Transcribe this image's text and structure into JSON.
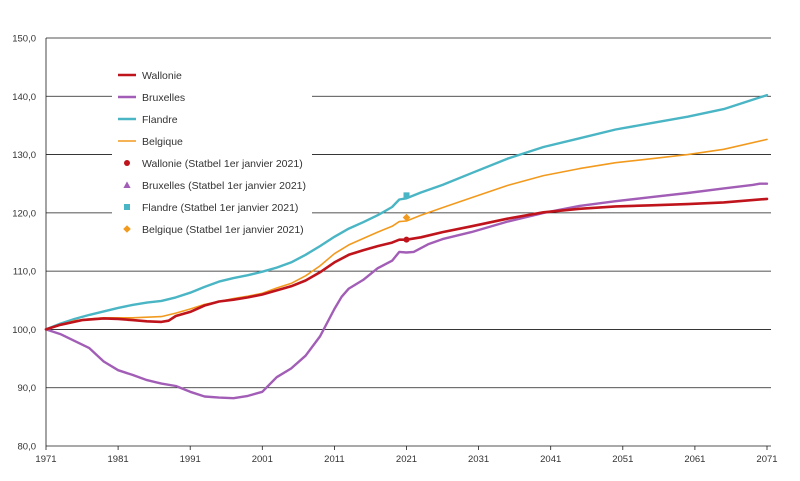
{
  "chart_data": {
    "type": "line",
    "xlim": [
      1971,
      2071
    ],
    "ylim": [
      80,
      150
    ],
    "x_ticks": [
      "1971",
      "1981",
      "1991",
      "2001",
      "2011",
      "2021",
      "2031",
      "2041",
      "2051",
      "2061",
      "2071"
    ],
    "y_ticks": [
      "150,0",
      "140,0",
      "130,0",
      "120,0",
      "110,0",
      "100,0",
      "90,0",
      "80,0"
    ],
    "y_tick_values": [
      150,
      140,
      130,
      120,
      110,
      100,
      90,
      80
    ],
    "grid": "horizontal",
    "legend_position": "top-left",
    "series": [
      {
        "name": "Wallonie",
        "color": "#c0141c",
        "points": [
          [
            1971,
            100
          ],
          [
            1973,
            100.8
          ],
          [
            1976,
            101.6
          ],
          [
            1979,
            101.9
          ],
          [
            1981,
            101.8
          ],
          [
            1983,
            101.6
          ],
          [
            1985,
            101.4
          ],
          [
            1987,
            101.3
          ],
          [
            1988,
            101.5
          ],
          [
            1989,
            102.3
          ],
          [
            1991,
            103.0
          ],
          [
            1993,
            104.1
          ],
          [
            1995,
            104.8
          ],
          [
            1997,
            105.1
          ],
          [
            1999,
            105.5
          ],
          [
            2001,
            106.0
          ],
          [
            2003,
            106.7
          ],
          [
            2005,
            107.4
          ],
          [
            2007,
            108.4
          ],
          [
            2009,
            109.8
          ],
          [
            2011,
            111.5
          ],
          [
            2013,
            112.8
          ],
          [
            2015,
            113.6
          ],
          [
            2017,
            114.3
          ],
          [
            2019,
            114.9
          ],
          [
            2020,
            115.4
          ],
          [
            2021,
            115.4
          ],
          [
            2023,
            115.8
          ],
          [
            2026,
            116.7
          ],
          [
            2030,
            117.7
          ],
          [
            2035,
            119.0
          ],
          [
            2040,
            120.1
          ],
          [
            2045,
            120.7
          ],
          [
            2050,
            121.1
          ],
          [
            2055,
            121.3
          ],
          [
            2060,
            121.5
          ],
          [
            2065,
            121.8
          ],
          [
            2071,
            122.4
          ]
        ]
      },
      {
        "name": "Bruxelles",
        "color": "#a25eb6",
        "points": [
          [
            1971,
            100
          ],
          [
            1973,
            99.2
          ],
          [
            1975,
            98.0
          ],
          [
            1977,
            96.8
          ],
          [
            1979,
            94.5
          ],
          [
            1981,
            93.0
          ],
          [
            1983,
            92.2
          ],
          [
            1985,
            91.3
          ],
          [
            1987,
            90.7
          ],
          [
            1989,
            90.3
          ],
          [
            1991,
            89.3
          ],
          [
            1993,
            88.5
          ],
          [
            1995,
            88.3
          ],
          [
            1997,
            88.2
          ],
          [
            1999,
            88.6
          ],
          [
            2001,
            89.3
          ],
          [
            2003,
            91.8
          ],
          [
            2005,
            93.3
          ],
          [
            2007,
            95.5
          ],
          [
            2009,
            98.8
          ],
          [
            2011,
            103.5
          ],
          [
            2012,
            105.6
          ],
          [
            2013,
            107.0
          ],
          [
            2015,
            108.5
          ],
          [
            2017,
            110.5
          ],
          [
            2019,
            111.8
          ],
          [
            2020,
            113.3
          ],
          [
            2021,
            113.2
          ],
          [
            2022,
            113.3
          ],
          [
            2024,
            114.6
          ],
          [
            2026,
            115.5
          ],
          [
            2030,
            116.7
          ],
          [
            2035,
            118.5
          ],
          [
            2040,
            120.0
          ],
          [
            2045,
            121.2
          ],
          [
            2050,
            122.0
          ],
          [
            2055,
            122.7
          ],
          [
            2060,
            123.4
          ],
          [
            2065,
            124.2
          ],
          [
            2069,
            124.8
          ],
          [
            2070,
            125.0
          ],
          [
            2071,
            125.0
          ]
        ]
      },
      {
        "name": "Flandre",
        "color": "#4ab5c4",
        "points": [
          [
            1971,
            100
          ],
          [
            1973,
            101.0
          ],
          [
            1975,
            101.8
          ],
          [
            1977,
            102.5
          ],
          [
            1979,
            103.1
          ],
          [
            1981,
            103.7
          ],
          [
            1983,
            104.2
          ],
          [
            1985,
            104.6
          ],
          [
            1987,
            104.9
          ],
          [
            1989,
            105.5
          ],
          [
            1991,
            106.3
          ],
          [
            1993,
            107.3
          ],
          [
            1995,
            108.2
          ],
          [
            1997,
            108.8
          ],
          [
            1999,
            109.3
          ],
          [
            2001,
            109.9
          ],
          [
            2003,
            110.6
          ],
          [
            2005,
            111.5
          ],
          [
            2007,
            112.8
          ],
          [
            2009,
            114.3
          ],
          [
            2011,
            115.9
          ],
          [
            2013,
            117.3
          ],
          [
            2015,
            118.4
          ],
          [
            2017,
            119.6
          ],
          [
            2019,
            121.0
          ],
          [
            2020,
            122.3
          ],
          [
            2021,
            122.5
          ],
          [
            2023,
            123.5
          ],
          [
            2026,
            124.8
          ],
          [
            2030,
            126.8
          ],
          [
            2035,
            129.3
          ],
          [
            2040,
            131.3
          ],
          [
            2045,
            132.8
          ],
          [
            2050,
            134.3
          ],
          [
            2055,
            135.4
          ],
          [
            2060,
            136.5
          ],
          [
            2065,
            137.8
          ],
          [
            2071,
            140.2
          ]
        ]
      },
      {
        "name": "Belgique",
        "color": "#f29a1e",
        "points": [
          [
            1971,
            100
          ],
          [
            1973,
            100.8
          ],
          [
            1975,
            101.5
          ],
          [
            1977,
            101.8
          ],
          [
            1979,
            102.0
          ],
          [
            1981,
            102.0
          ],
          [
            1983,
            102.0
          ],
          [
            1985,
            102.1
          ],
          [
            1987,
            102.2
          ],
          [
            1989,
            102.8
          ],
          [
            1991,
            103.5
          ],
          [
            1993,
            104.3
          ],
          [
            1995,
            104.8
          ],
          [
            1997,
            105.3
          ],
          [
            1999,
            105.7
          ],
          [
            2001,
            106.2
          ],
          [
            2003,
            107.1
          ],
          [
            2005,
            107.9
          ],
          [
            2007,
            109.2
          ],
          [
            2009,
            110.9
          ],
          [
            2011,
            113.0
          ],
          [
            2013,
            114.5
          ],
          [
            2015,
            115.6
          ],
          [
            2017,
            116.7
          ],
          [
            2019,
            117.7
          ],
          [
            2020,
            118.5
          ],
          [
            2021,
            118.6
          ],
          [
            2023,
            119.6
          ],
          [
            2026,
            120.9
          ],
          [
            2030,
            122.6
          ],
          [
            2035,
            124.7
          ],
          [
            2040,
            126.4
          ],
          [
            2045,
            127.6
          ],
          [
            2050,
            128.6
          ],
          [
            2055,
            129.3
          ],
          [
            2060,
            130.0
          ],
          [
            2065,
            130.9
          ],
          [
            2071,
            132.6
          ]
        ]
      },
      {
        "name": "Wallonie (Statbel 1er janvier 2021)",
        "color": "#c0141c",
        "marker": "circle",
        "points": [
          [
            2021,
            115.4
          ]
        ]
      },
      {
        "name": "Bruxelles (Statbel 1er janvier 2021)",
        "color": "#a25eb6",
        "marker": "triangle",
        "points": []
      },
      {
        "name": "Flandre (Statbel 1er janvier 2021)",
        "color": "#4ab5c4",
        "marker": "square",
        "points": [
          [
            2021,
            123.0
          ]
        ]
      },
      {
        "name": "Belgique (Statbel 1er janvier 2021)",
        "color": "#f29a1e",
        "marker": "diamond",
        "points": [
          [
            2021,
            119.2
          ]
        ]
      }
    ]
  }
}
